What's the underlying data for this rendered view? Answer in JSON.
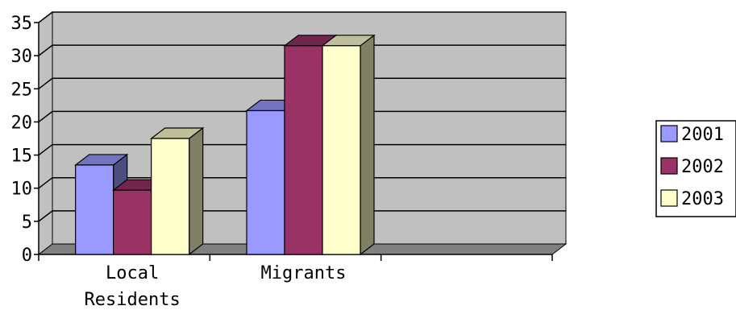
{
  "chart_data": {
    "type": "bar",
    "categories": [
      "Local Residents",
      "Migrants",
      ""
    ],
    "series": [
      {
        "name": "2001",
        "values": [
          13.5,
          21.7,
          null
        ]
      },
      {
        "name": "2002",
        "values": [
          9.7,
          31.5,
          null
        ]
      },
      {
        "name": "2003",
        "values": [
          17.5,
          31.5,
          null
        ]
      }
    ],
    "yticks": [
      0,
      5,
      10,
      15,
      20,
      25,
      30,
      35
    ],
    "ylim": [
      0,
      35
    ],
    "grid": true,
    "legend": "right",
    "colors": {
      "2001": "#9999ff",
      "2002": "#993366",
      "2003": "#ffffcc",
      "plot_back_wall": "#c0c0c0",
      "floor": "#808080"
    }
  }
}
